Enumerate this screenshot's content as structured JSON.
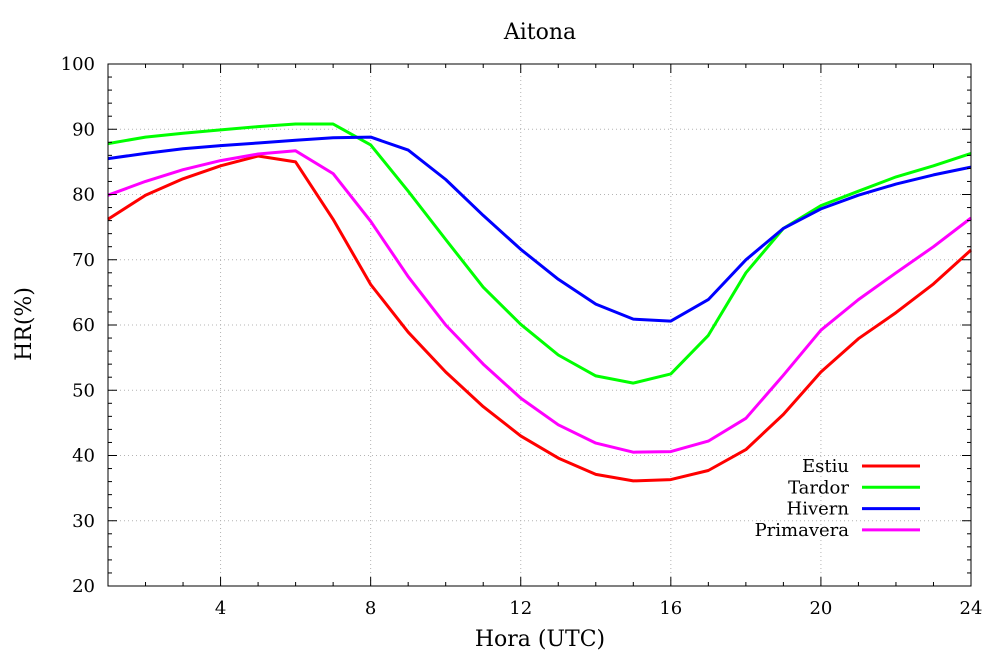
{
  "chart_data": {
    "type": "line",
    "title": "Aitona",
    "xlabel": "Hora (UTC)",
    "ylabel": "HR(%)",
    "xlim": [
      1,
      24
    ],
    "ylim": [
      20,
      100
    ],
    "xticks": [
      4,
      8,
      12,
      16,
      20,
      24
    ],
    "yticks": [
      20,
      30,
      40,
      50,
      60,
      70,
      80,
      90,
      100
    ],
    "grid": true,
    "legend_position": "bottom-right",
    "x": [
      1,
      2,
      3,
      4,
      5,
      6,
      7,
      8,
      9,
      10,
      11,
      12,
      13,
      14,
      15,
      16,
      17,
      18,
      19,
      20,
      21,
      22,
      23,
      24
    ],
    "series": [
      {
        "name": "Estiu",
        "color": "#ff0000",
        "values": [
          76.2,
          79.9,
          82.4,
          84.4,
          85.9,
          85.0,
          76.2,
          66.2,
          58.9,
          52.8,
          47.5,
          43.0,
          39.6,
          37.1,
          36.1,
          36.3,
          37.7,
          40.9,
          46.3,
          52.8,
          57.9,
          61.9,
          66.3,
          71.5
        ]
      },
      {
        "name": "Tardor",
        "color": "#00ff00",
        "values": [
          87.8,
          88.8,
          89.4,
          89.9,
          90.4,
          90.8,
          90.8,
          87.6,
          80.5,
          73.1,
          65.8,
          60.1,
          55.4,
          52.2,
          51.1,
          52.5,
          58.4,
          68.0,
          74.8,
          78.3,
          80.5,
          82.7,
          84.4,
          86.3
        ]
      },
      {
        "name": "Hivern",
        "color": "#0000ff",
        "values": [
          85.5,
          86.3,
          87.0,
          87.5,
          87.9,
          88.3,
          88.7,
          88.8,
          86.8,
          82.3,
          76.8,
          71.6,
          67.0,
          63.2,
          60.9,
          60.6,
          63.9,
          70.0,
          74.8,
          77.8,
          79.9,
          81.6,
          83.0,
          84.2
        ]
      },
      {
        "name": "Primavera",
        "color": "#ff00ff",
        "values": [
          79.9,
          82.0,
          83.8,
          85.2,
          86.2,
          86.7,
          83.2,
          75.9,
          67.4,
          60.0,
          54.0,
          48.8,
          44.7,
          41.9,
          40.5,
          40.6,
          42.2,
          45.7,
          52.3,
          59.2,
          63.9,
          68.0,
          72.0,
          76.4
        ]
      }
    ]
  }
}
